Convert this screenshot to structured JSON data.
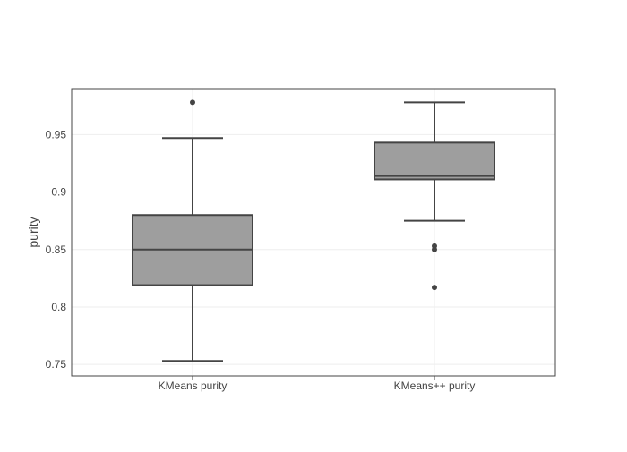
{
  "chart_data": {
    "type": "box",
    "title": "",
    "xlabel": "",
    "ylabel": "purity",
    "ylim": [
      0.74,
      0.99
    ],
    "yticks": [
      0.75,
      0.8,
      0.85,
      0.9,
      0.95
    ],
    "ytick_labels": [
      "0.75",
      "0.8",
      "0.85",
      "0.9",
      "0.95"
    ],
    "grid": true,
    "colors": {
      "box_fill": "#9e9e9e",
      "box_line": "#444444",
      "grid": "#eeeeee",
      "frame": "#444444"
    },
    "categories": [
      "KMeans purity",
      "KMeans++ purity"
    ],
    "series": [
      {
        "category": "KMeans purity",
        "lower_whisker": 0.753,
        "q1": 0.819,
        "median": 0.85,
        "q3": 0.88,
        "upper_whisker": 0.947,
        "outliers": [
          0.978
        ]
      },
      {
        "category": "KMeans++ purity",
        "lower_whisker": 0.875,
        "q1": 0.911,
        "median": 0.914,
        "q3": 0.943,
        "upper_whisker": 0.978,
        "outliers": [
          0.853,
          0.85,
          0.817
        ]
      }
    ]
  }
}
